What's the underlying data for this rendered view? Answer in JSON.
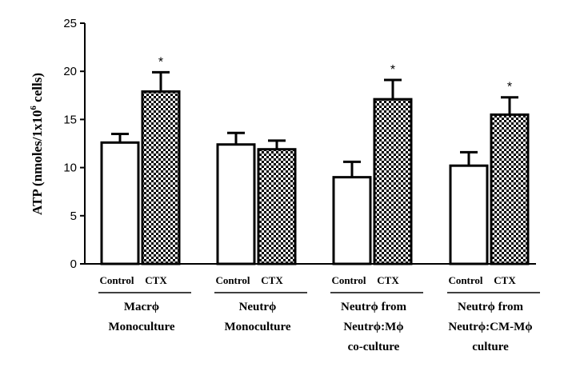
{
  "chart_data": {
    "type": "bar",
    "ylabel_main": "ATP (nmoles/1x10",
    "ylabel_sup": "6",
    "ylabel_end": " cells)",
    "ylim": [
      0,
      25
    ],
    "yticks": [
      0,
      5,
      10,
      15,
      20,
      25
    ],
    "grid": false,
    "bar_labels": [
      "Control",
      "CTX"
    ],
    "groups": [
      {
        "label_lines": [
          "Macrϕ",
          "Monoculture"
        ],
        "control": {
          "value": 12.6,
          "error": 0.9
        },
        "ctx": {
          "value": 17.9,
          "error": 2.0,
          "significance": "*"
        }
      },
      {
        "label_lines": [
          "Neutrϕ",
          "Monoculture"
        ],
        "control": {
          "value": 12.4,
          "error": 1.2
        },
        "ctx": {
          "value": 11.9,
          "error": 0.9,
          "significance": ""
        }
      },
      {
        "label_lines": [
          "Neutrϕ  from",
          "Neutrϕ:Mϕ",
          "co-culture"
        ],
        "control": {
          "value": 9.0,
          "error": 1.6
        },
        "ctx": {
          "value": 17.1,
          "error": 2.0,
          "significance": "*"
        }
      },
      {
        "label_lines": [
          "Neutrϕ  from",
          "Neutrϕ:CM-Mϕ",
          "culture"
        ],
        "control": {
          "value": 10.2,
          "error": 1.4
        },
        "ctx": {
          "value": 15.5,
          "error": 1.8,
          "significance": "*"
        }
      }
    ],
    "series": [
      {
        "name": "Control",
        "fill": "#ffffff"
      },
      {
        "name": "CTX",
        "fill": "pattern-checker"
      }
    ]
  }
}
